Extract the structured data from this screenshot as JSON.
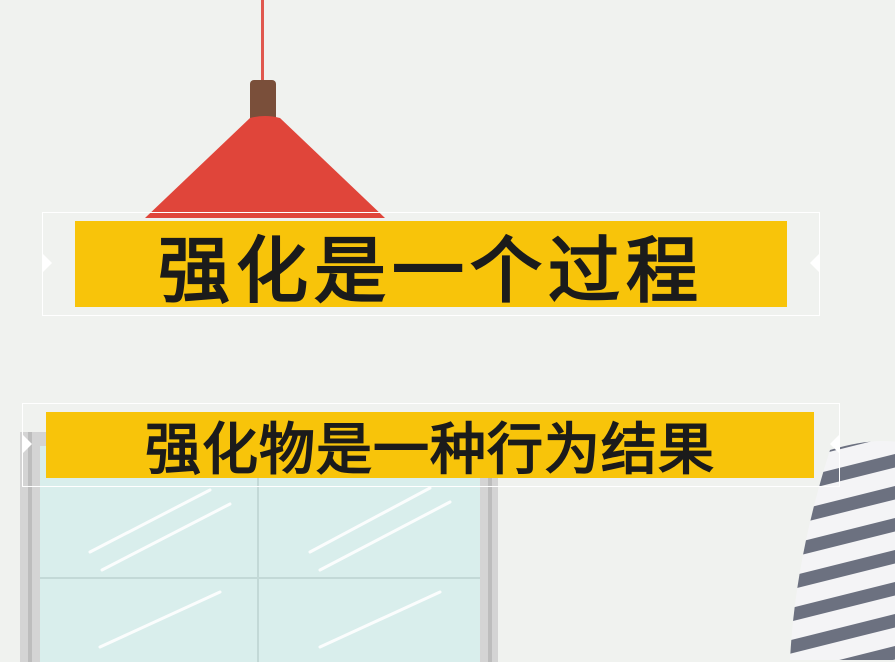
{
  "captions": {
    "primary": "强化是一个过程",
    "secondary": "强化物是一种行为结果"
  },
  "colors": {
    "background": "#f0f2ef",
    "caption_bar": "#f8c40a",
    "caption_text": "#1b1b1b",
    "lamp_shade": "#e0453a",
    "lamp_cap": "#7a4f3a",
    "window_glass": "#d9eeec",
    "window_frame": "#cfcfcf"
  }
}
